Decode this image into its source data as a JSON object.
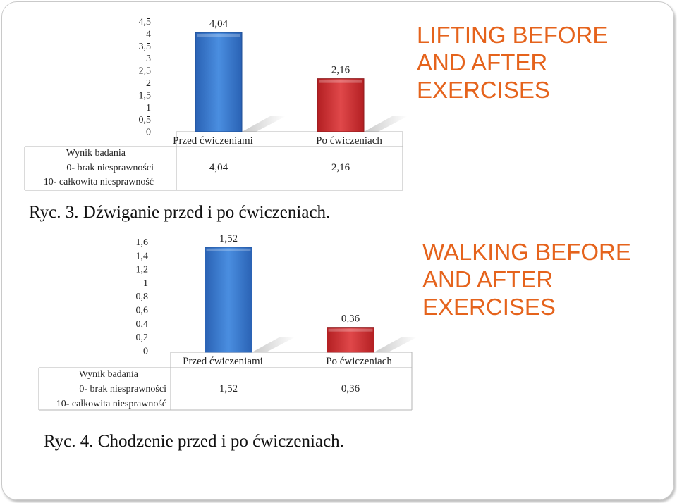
{
  "chart_data": [
    {
      "type": "bar",
      "categories": [
        "Przed ćwiczeniami",
        "Po ćwiczeniach"
      ],
      "values": [
        4.04,
        2.16
      ],
      "value_labels": [
        "4,04",
        "2,16"
      ],
      "bar_colors": [
        "#2f6fc6",
        "#c7282b"
      ],
      "yticks": [
        "4,5",
        "4",
        "3,5",
        "3",
        "2,5",
        "2",
        "1,5",
        "1",
        "0,5",
        "0"
      ],
      "ylim": [
        0,
        4.5
      ],
      "table": {
        "row_label": [
          "Wynik badania",
          "0- brak niesprawności",
          "10- całkowita niesprawność"
        ],
        "values": [
          "4,04",
          "2,16"
        ]
      }
    },
    {
      "type": "bar",
      "categories": [
        "Przed ćwiczeniami",
        "Po ćwiczeniach"
      ],
      "values": [
        1.52,
        0.36
      ],
      "value_labels": [
        "1,52",
        "0,36"
      ],
      "bar_colors": [
        "#2f6fc6",
        "#c7282b"
      ],
      "yticks": [
        "1,6",
        "1,4",
        "1,2",
        "1",
        "0,8",
        "0,6",
        "0,4",
        "0,2",
        "0"
      ],
      "ylim": [
        0,
        1.6
      ],
      "table": {
        "row_label": [
          "Wynik badania",
          "0- brak niesprawności",
          "10- całkowita niesprawność"
        ],
        "values": [
          "1,52",
          "0,36"
        ]
      }
    }
  ],
  "titles": {
    "lifting": [
      "LIFTING BEFORE",
      "AND AFTER",
      "EXERCISES"
    ],
    "walking": [
      "WALKING BEFORE",
      "AND AFTER",
      "EXERCISES"
    ]
  },
  "captions": {
    "fig3": "Ryc. 3. Dźwiganie przed i po ćwiczeniach.",
    "fig4": "Ryc. 4. Chodzenie przed i po ćwiczeniach."
  },
  "colors": {
    "title": "#e5631c",
    "bar_before": "#2f6fc6",
    "bar_after": "#c7282b"
  }
}
